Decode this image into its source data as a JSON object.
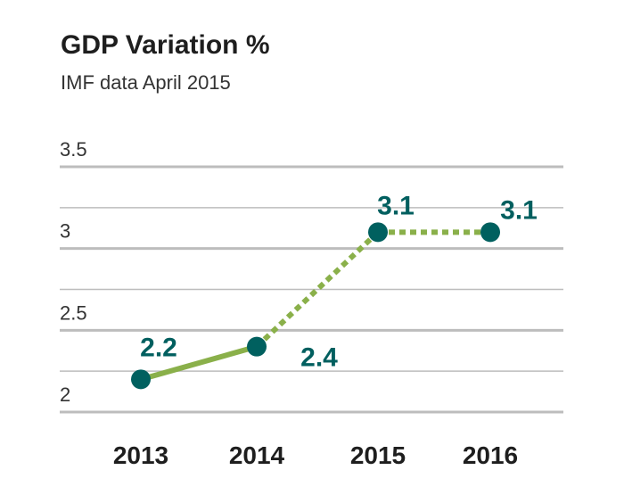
{
  "header": {
    "title": "GDP Variation %",
    "subtitle": "IMF data April 2015"
  },
  "colors": {
    "line": "#8ab04a",
    "marker": "#00605f",
    "label": "#005f5f",
    "grid": "#bdbdbd"
  },
  "chart_data": {
    "type": "line",
    "title": "GDP Variation %",
    "subtitle": "IMF data April 2015",
    "categories": [
      "2013",
      "2014",
      "2015",
      "2016"
    ],
    "series": [
      {
        "values": [
          2.2,
          2.4,
          3.1,
          3.1
        ],
        "data_labels": [
          "2.2",
          "2.4",
          "3.1",
          "3.1"
        ],
        "segment_styles": [
          "solid",
          "dashed",
          "dashed"
        ]
      }
    ],
    "y_ticks": [
      "2",
      "2.5",
      "3",
      "3.5"
    ],
    "ylim": [
      1.95,
      3.5
    ],
    "grid": true,
    "xlabel": "",
    "ylabel": ""
  }
}
